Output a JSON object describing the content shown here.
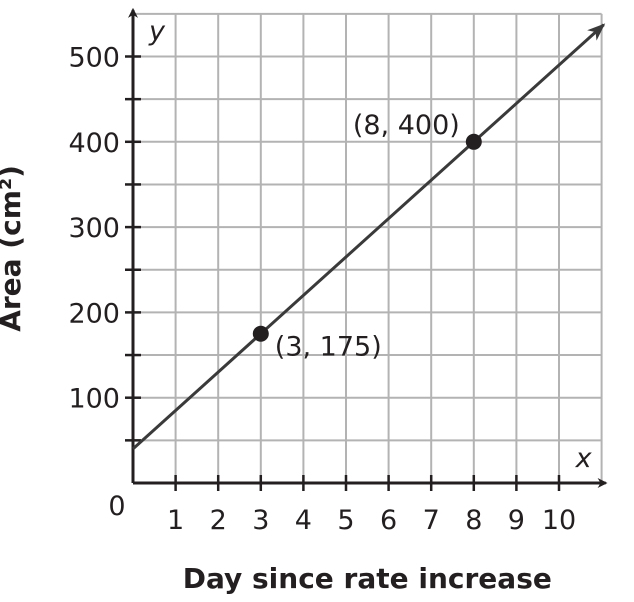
{
  "chart_data": {
    "type": "line",
    "xlabel": "Day since rate increase",
    "ylabel": "Area (cm²)",
    "x_axis_letter": "x",
    "y_axis_letter": "y",
    "origin_label": "0",
    "xlim": [
      0,
      11
    ],
    "ylim": [
      0,
      550
    ],
    "x_ticks": [
      1,
      2,
      3,
      4,
      5,
      6,
      7,
      8,
      9,
      10
    ],
    "y_ticks": [
      100,
      200,
      300,
      400,
      500
    ],
    "grid": true,
    "grid_step": {
      "x": 1,
      "y": 50
    },
    "line": {
      "slope": 45,
      "intercept": 40,
      "x_range": [
        0,
        11.05
      ],
      "arrow_end": true
    },
    "points": [
      {
        "x": 3,
        "y": 175,
        "label": "(3, 175)"
      },
      {
        "x": 8,
        "y": 400,
        "label": "(8, 400)"
      }
    ],
    "colors": {
      "grid": "#b3b3b3",
      "axis": "#231f20",
      "line": "#3a3a3a"
    }
  }
}
